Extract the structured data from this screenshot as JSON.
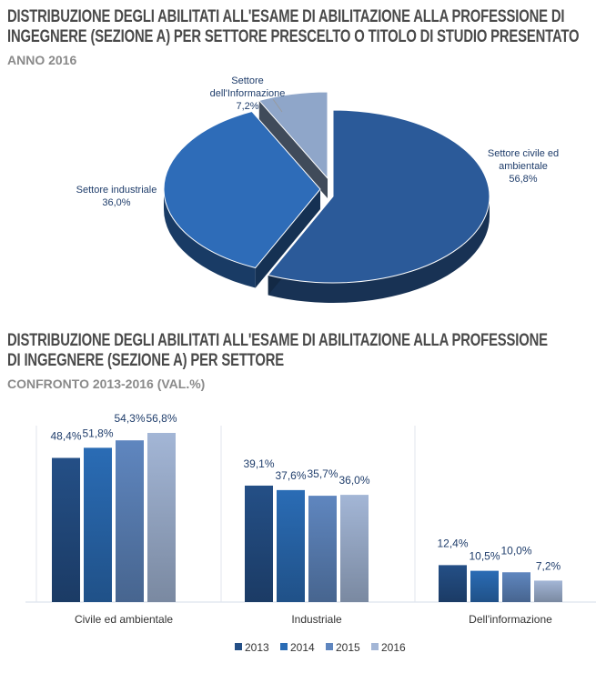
{
  "chart_data": [
    {
      "type": "pie",
      "title": "DISTRIBUZIONE DEGLI ABILITATI ALL'ESAME DI ABILITAZIONE ALLA PROFESSIONE DI INGEGNERE (SEZIONE A) PER SETTORE PRESCELTO O TITOLO DI STUDIO PRESENTATO",
      "title_lines": [
        "DISTRIBUZIONE DEGLI ABILITATI ALL'ESAME DI ABILITAZIONE ALLA PROFESSIONE DI",
        "INGEGNERE (SEZIONE A) PER SETTORE PRESCELTO O TITOLO DI STUDIO PRESENTATO"
      ],
      "subtitle": "ANNO 2016",
      "slices": [
        {
          "label": "Settore civile ed ambientale",
          "label_lines": [
            "Settore civile ed",
            "ambientale"
          ],
          "value": 56.8,
          "value_label": "56,8%",
          "color": "#2b5a99"
        },
        {
          "label": "Settore industriale",
          "label_lines": [
            "Settore industriale"
          ],
          "value": 36.0,
          "value_label": "36,0%",
          "color": "#2e6cb8"
        },
        {
          "label": "Settore dell'Informazione",
          "label_lines": [
            "Settore",
            "dell'Informazione"
          ],
          "value": 7.2,
          "value_label": "7,2%",
          "color": "#8fa6c9"
        }
      ]
    },
    {
      "type": "bar",
      "title": "DISTRIBUZIONE DEGLI ABILITATI ALL'ESAME DI ABILITAZIONE ALLA PROFESSIONE DI INGEGNERE (SEZIONE A) PER SETTORE",
      "title_lines": [
        "DISTRIBUZIONE DEGLI ABILITATI ALL'ESAME DI ABILITAZIONE ALLA PROFESSIONE",
        "DI INGEGNERE (SEZIONE A) PER SETTORE"
      ],
      "subtitle": "CONFRONTO 2013-2016 (VAL.%)",
      "categories": [
        "Civile ed ambientale",
        "Industriale",
        "Dell'informazione"
      ],
      "series": [
        {
          "name": "2013",
          "values": [
            48.4,
            39.1,
            12.4
          ],
          "labels": [
            "48,4%",
            "39,1%",
            "12,4%"
          ],
          "color": "#244f86"
        },
        {
          "name": "2014",
          "values": [
            51.8,
            37.6,
            10.5
          ],
          "labels": [
            "51,8%",
            "37,6%",
            "10,5%"
          ],
          "color": "#2a6cb5"
        },
        {
          "name": "2015",
          "values": [
            54.3,
            35.7,
            10.0
          ],
          "labels": [
            "54,3%",
            "35,7%",
            "10,0%"
          ],
          "color": "#5f86bf"
        },
        {
          "name": "2016",
          "values": [
            56.8,
            36.0,
            7.2
          ],
          "labels": [
            "56,8%",
            "36,0%",
            "7,2%"
          ],
          "color": "#a3b6d6"
        }
      ],
      "ylim": [
        0,
        60
      ],
      "legend": "bottom"
    }
  ]
}
